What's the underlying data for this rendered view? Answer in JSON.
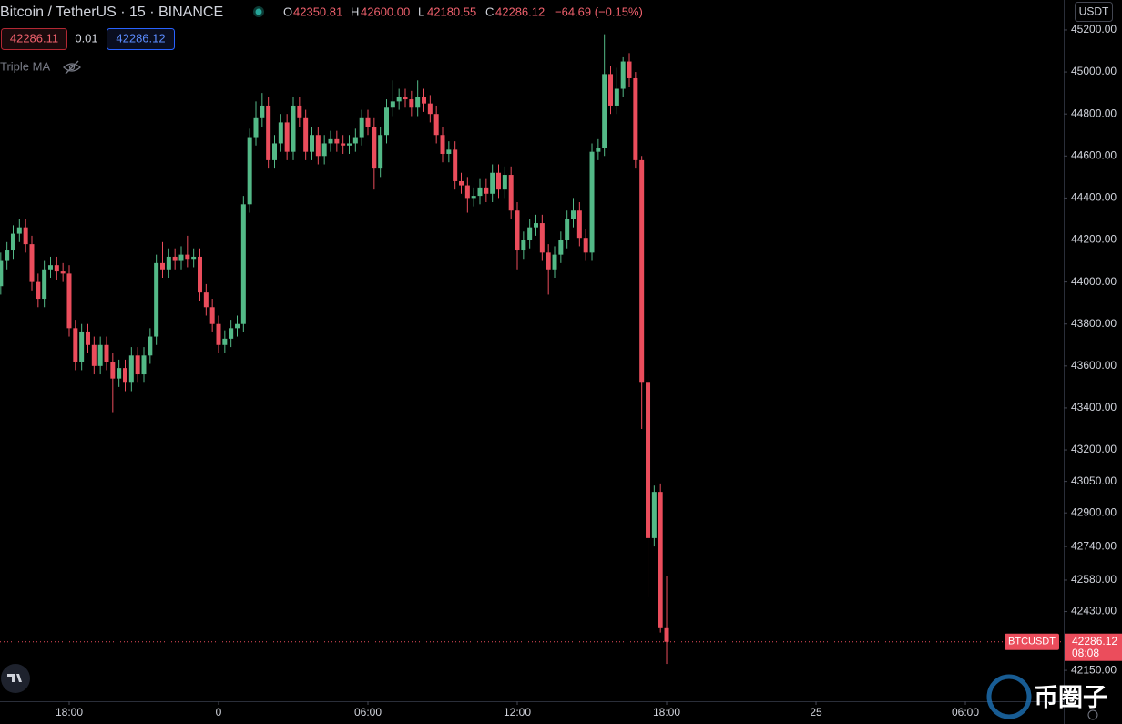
{
  "header": {
    "symbol": "Bitcoin / TetherUS · 15 · BINANCE",
    "o": "O",
    "h": "H",
    "high": "42600.00",
    "l": "L",
    "c": "C",
    "change": "−64.69 (−0.15%)"
  },
  "trade": {
    "sell": "42286.11",
    "spread": "0.01",
    "buy": "42286.12"
  },
  "indicator": "Triple MA",
  "currency": "USDT",
  "badge": {
    "symbol": "BTCUSDT",
    "countdown": "08:08"
  },
  "watermark": "币圈子",
  "chart_data": {
    "type": "candlestick",
    "up_color": "#53b987",
    "down_color": "#eb4d5c",
    "xlim": [
      -8.78,
      33.95
    ],
    "ylim": [
      42003,
      45343
    ],
    "xticks": [
      {
        "value": -6,
        "label": "18:00"
      },
      0,
      {
        "value": 6,
        "label": "06:00"
      },
      {
        "value": 12,
        "label": "12:00"
      },
      {
        "value": 18,
        "label": "18:00"
      },
      {
        "value": 24,
        "label": "25"
      },
      {
        "value": 30,
        "label": "06:00"
      }
    ],
    "yticks": [
      {
        "value": 45200,
        "label": "45200.00"
      },
      {
        "value": 45000,
        "label": "45000.00"
      },
      {
        "value": 44800,
        "label": "44800.00"
      },
      {
        "value": 44600,
        "label": "44600.00"
      },
      {
        "value": 44400,
        "label": "44400.00"
      },
      {
        "value": 44200,
        "label": "44200.00"
      },
      {
        "value": 44000,
        "label": "44000.00"
      },
      {
        "value": 43800,
        "label": "43800.00"
      },
      {
        "value": 43600,
        "label": "43600.00"
      },
      {
        "value": 43400,
        "label": "43400.00"
      },
      {
        "value": 43200,
        "label": "43200.00"
      },
      {
        "value": 43050,
        "label": "43050.00"
      },
      {
        "value": 42900,
        "label": "42900.00"
      },
      {
        "value": 42740,
        "label": "42740.00"
      },
      {
        "value": 42580,
        "label": "42580.00"
      },
      {
        "value": 42430,
        "label": "42430.00"
      },
      {
        "value": 42150,
        "label": "42150.00"
      }
    ],
    "x": [
      -8.75,
      -8.5,
      -8.25,
      -8,
      -7.75,
      -7.5,
      -7.25,
      -7,
      -6.75,
      -6.5,
      -6.25,
      -6,
      -5.75,
      -5.5,
      -5.25,
      -5,
      -4.75,
      -4.5,
      -4.25,
      -4,
      -3.75,
      -3.5,
      -3.25,
      -3,
      -2.75,
      -2.5,
      -2.25,
      -2,
      -1.75,
      -1.5,
      -1.25,
      -1,
      -0.75,
      -0.5,
      -0.25,
      0,
      0.25,
      0.5,
      0.75,
      1,
      1.25,
      1.5,
      1.75,
      2,
      2.25,
      2.5,
      2.75,
      3,
      3.25,
      3.5,
      3.75,
      4,
      4.25,
      4.5,
      4.75,
      5,
      5.25,
      5.5,
      5.75,
      6,
      6.25,
      6.5,
      6.75,
      7,
      7.25,
      7.5,
      7.75,
      8,
      8.25,
      8.5,
      8.75,
      9,
      9.25,
      9.5,
      9.75,
      10,
      10.25,
      10.5,
      10.75,
      11,
      11.25,
      11.5,
      11.75,
      12,
      12.25,
      12.5,
      12.75,
      13,
      13.25,
      13.5,
      13.75,
      14,
      14.25,
      14.5,
      14.75,
      15,
      15.25,
      15.5,
      15.75,
      16,
      16.25,
      16.5,
      16.75,
      17,
      17.25,
      17.5,
      17.75,
      18
    ],
    "open": [
      43980,
      44100,
      44150,
      44230,
      44260,
      44180,
      44000,
      43920,
      44060,
      44080,
      44050,
      44040,
      43780,
      43620,
      43760,
      43700,
      43600,
      43700,
      43620,
      43540,
      43590,
      43520,
      43650,
      43560,
      43650,
      43740,
      44090,
      44060,
      44120,
      44100,
      44130,
      44110,
      44120,
      43950,
      43880,
      43800,
      43700,
      43730,
      43780,
      43800,
      44370,
      44690,
      44780,
      44840,
      44580,
      44660,
      44760,
      44620,
      44840,
      44780,
      44620,
      44700,
      44600,
      44660,
      44680,
      44660,
      44650,
      44660,
      44690,
      44780,
      44740,
      44540,
      44700,
      44830,
      44860,
      44880,
      44870,
      44830,
      44880,
      44850,
      44800,
      44700,
      44610,
      44630,
      44480,
      44460,
      44400,
      44410,
      44450,
      44420,
      44520,
      44440,
      44510,
      44340,
      44150,
      44200,
      44260,
      44280,
      44140,
      44060,
      44130,
      44200,
      44300,
      44340,
      44210,
      44140,
      44620,
      44640,
      44990,
      44840,
      44920,
      45050,
      44970,
      44580,
      43520,
      42780,
      43000,
      42350.81
    ],
    "high": [
      44140,
      44190,
      44270,
      44300,
      44300,
      44220,
      44040,
      44100,
      44120,
      44120,
      44090,
      44080,
      43820,
      43800,
      43800,
      43740,
      43740,
      43740,
      43660,
      43630,
      43630,
      43690,
      43690,
      43690,
      43780,
      44130,
      44190,
      44160,
      44160,
      44170,
      44220,
      44160,
      44160,
      43990,
      43920,
      43840,
      43770,
      43820,
      43840,
      44410,
      44730,
      44860,
      44900,
      44880,
      44700,
      44800,
      44800,
      44880,
      44880,
      44820,
      44740,
      44740,
      44700,
      44720,
      44720,
      44700,
      44700,
      44730,
      44820,
      44820,
      44780,
      44740,
      44870,
      44960,
      44920,
      44920,
      44910,
      44960,
      44920,
      44890,
      44840,
      44740,
      44670,
      44670,
      44520,
      44500,
      44450,
      44490,
      44490,
      44560,
      44560,
      44550,
      44550,
      44380,
      44240,
      44300,
      44320,
      44320,
      44180,
      44170,
      44240,
      44340,
      44400,
      44380,
      44250,
      44660,
      44680,
      45180,
      45030,
      45020,
      45070,
      45090,
      45000,
      44600,
      43560,
      43030,
      43040,
      42600
    ],
    "low": [
      43940,
      44060,
      44110,
      44190,
      44140,
      43960,
      43880,
      43880,
      44020,
      44010,
      44000,
      43740,
      43580,
      43580,
      43660,
      43560,
      43560,
      43580,
      43380,
      43500,
      43480,
      43480,
      43520,
      43520,
      43610,
      43700,
      44020,
      44020,
      44060,
      44060,
      44070,
      44070,
      43910,
      43840,
      43760,
      43660,
      43660,
      43690,
      43740,
      43760,
      44330,
      44650,
      44740,
      44540,
      44540,
      44620,
      44580,
      44580,
      44740,
      44580,
      44580,
      44560,
      44560,
      44620,
      44620,
      44610,
      44610,
      44620,
      44650,
      44700,
      44440,
      44500,
      44660,
      44790,
      44820,
      44830,
      44790,
      44790,
      44810,
      44760,
      44660,
      44570,
      44570,
      44440,
      44420,
      44330,
      44360,
      44370,
      44380,
      44380,
      44400,
      44400,
      44300,
      44060,
      44110,
      44160,
      44220,
      44100,
      43940,
      44020,
      44090,
      44160,
      44260,
      44170,
      44100,
      44100,
      44580,
      44600,
      44800,
      44800,
      44880,
      44930,
      44540,
      43300,
      42500,
      42740,
      42330,
      42180.55
    ],
    "close": [
      44100,
      44150,
      44230,
      44260,
      44180,
      44000,
      43920,
      44060,
      44080,
      44050,
      44040,
      43780,
      43620,
      43760,
      43700,
      43600,
      43700,
      43620,
      43540,
      43590,
      43520,
      43650,
      43560,
      43650,
      43740,
      44090,
      44060,
      44120,
      44100,
      44130,
      44110,
      44120,
      43950,
      43880,
      43800,
      43700,
      43730,
      43780,
      43800,
      44370,
      44690,
      44780,
      44840,
      44580,
      44660,
      44760,
      44620,
      44840,
      44780,
      44620,
      44700,
      44600,
      44660,
      44680,
      44660,
      44650,
      44660,
      44690,
      44780,
      44740,
      44540,
      44700,
      44830,
      44860,
      44880,
      44870,
      44830,
      44880,
      44850,
      44800,
      44700,
      44610,
      44630,
      44480,
      44460,
      44400,
      44410,
      44450,
      44420,
      44520,
      44440,
      44510,
      44340,
      44150,
      44200,
      44260,
      44280,
      44140,
      44060,
      44130,
      44200,
      44300,
      44340,
      44210,
      44140,
      44620,
      44640,
      44990,
      44840,
      44920,
      45050,
      44970,
      44580,
      43520,
      42780,
      43000,
      42350.81,
      42286.12
    ]
  }
}
